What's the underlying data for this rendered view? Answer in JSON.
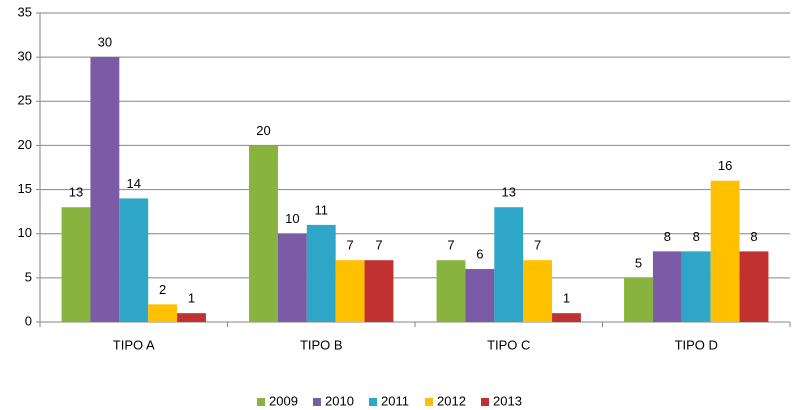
{
  "chart_data": {
    "type": "bar",
    "categories": [
      "TIPO A",
      "TIPO B",
      "TIPO C",
      "TIPO D"
    ],
    "series": [
      {
        "name": "2009",
        "color": "#88b33f",
        "values": [
          13,
          20,
          7,
          5
        ]
      },
      {
        "name": "2010",
        "color": "#7b5aa6",
        "values": [
          30,
          10,
          6,
          8
        ]
      },
      {
        "name": "2011",
        "color": "#2fa6c8",
        "values": [
          14,
          11,
          13,
          8
        ]
      },
      {
        "name": "2012",
        "color": "#ffc000",
        "values": [
          2,
          7,
          7,
          16
        ]
      },
      {
        "name": "2013",
        "color": "#c0312f",
        "values": [
          1,
          7,
          1,
          8
        ]
      }
    ],
    "ylim": [
      0,
      35
    ],
    "yticks": [
      0,
      5,
      10,
      15,
      20,
      25,
      30,
      35
    ],
    "grid": true,
    "legend": "bottom"
  }
}
